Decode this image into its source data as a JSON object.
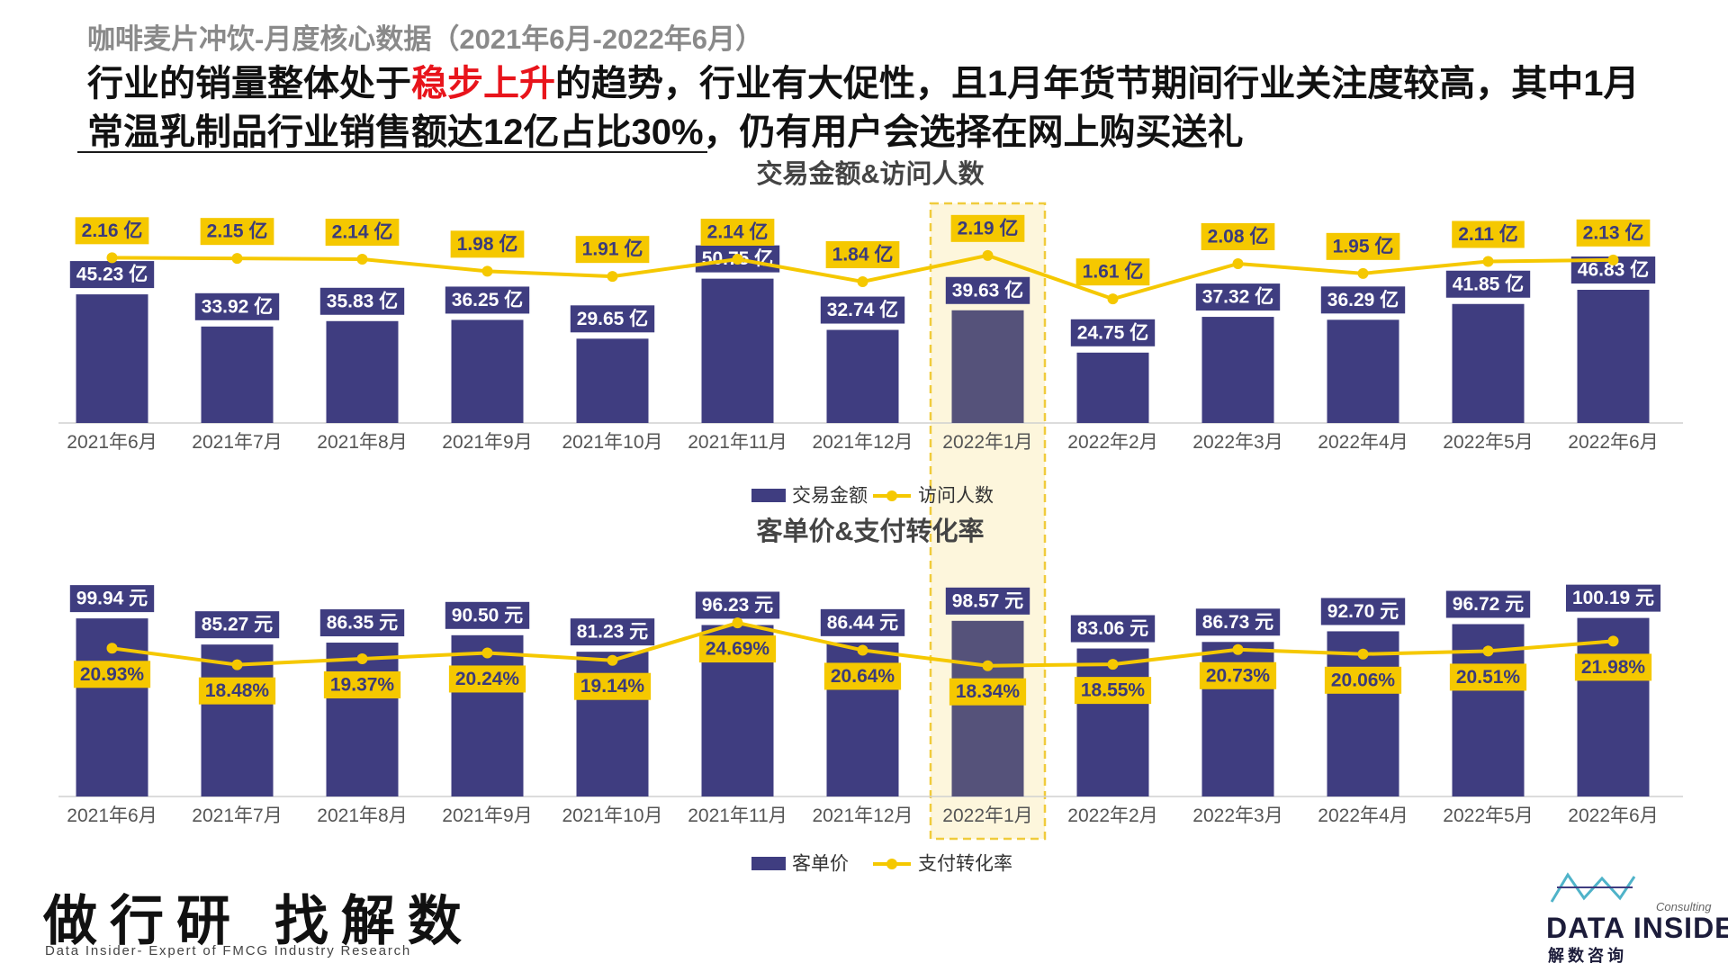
{
  "page": {
    "subtitle": "咖啡麦片冲饮-月度核心数据（2021年6月-2022年6月）",
    "headline": {
      "part1": "行业的销量整体处于",
      "highlight": "稳步上升",
      "part2": "的趋势，行业有大促性，且1月年货节期间行业关注度较高，其中1月",
      "line2": "常温乳制品行业销售额达12亿占比30%，仍有用户会选择在网上购买送礼"
    }
  },
  "colors": {
    "bar": "#3f3d80",
    "bar_highlight": "#55527a",
    "line": "#f5c800",
    "label_bg": "#3f3d80",
    "line_label_bg": "#f5c800",
    "highlight_fill": "#fdf6dc",
    "highlight_border": "#f0cb3c"
  },
  "chart_data": [
    {
      "type": "bar",
      "title": "交易金额&访问人数",
      "categories": [
        "2021年6月",
        "2021年7月",
        "2021年8月",
        "2021年9月",
        "2021年10月",
        "2021年11月",
        "2021年12月",
        "2022年1月",
        "2022年2月",
        "2022年3月",
        "2022年4月",
        "2022年5月",
        "2022年6月"
      ],
      "highlight_category": "2022年1月",
      "series": [
        {
          "name": "交易金额",
          "kind": "bar",
          "unit": "亿",
          "values": [
            45.23,
            33.92,
            35.83,
            36.25,
            29.65,
            50.75,
            32.74,
            39.63,
            24.75,
            37.32,
            36.29,
            41.85,
            46.83
          ]
        },
        {
          "name": "访问人数",
          "kind": "line",
          "unit": "亿",
          "values": [
            2.16,
            2.15,
            2.14,
            1.98,
            1.91,
            2.14,
            1.84,
            2.19,
            1.61,
            2.08,
            1.95,
            2.11,
            2.13
          ]
        }
      ],
      "legend_position": "bottom-center",
      "grid": false
    },
    {
      "type": "bar",
      "title": "客单价&支付转化率",
      "categories": [
        "2021年6月",
        "2021年7月",
        "2021年8月",
        "2021年9月",
        "2021年10月",
        "2021年11月",
        "2021年12月",
        "2022年1月",
        "2022年2月",
        "2022年3月",
        "2022年4月",
        "2022年5月",
        "2022年6月"
      ],
      "highlight_category": "2022年1月",
      "series": [
        {
          "name": "客单价",
          "kind": "bar",
          "unit": "元",
          "values": [
            99.94,
            85.27,
            86.35,
            90.5,
            81.23,
            96.23,
            86.44,
            98.57,
            83.06,
            86.73,
            92.7,
            96.72,
            100.19
          ]
        },
        {
          "name": "支付转化率",
          "kind": "line",
          "unit": "%",
          "values": [
            20.93,
            18.48,
            19.37,
            20.24,
            19.14,
            24.69,
            20.64,
            18.34,
            18.55,
            20.73,
            20.06,
            20.51,
            21.98
          ]
        }
      ],
      "legend_position": "bottom-center",
      "grid": false
    }
  ],
  "branding": {
    "slogan": "做行研 找解数",
    "tagline": "Data Insider- Expert of FMCG Industry Research",
    "logo_consulting": "Consulting",
    "logo_name": "DATA INSIDER",
    "logo_cn": "解数咨询"
  }
}
